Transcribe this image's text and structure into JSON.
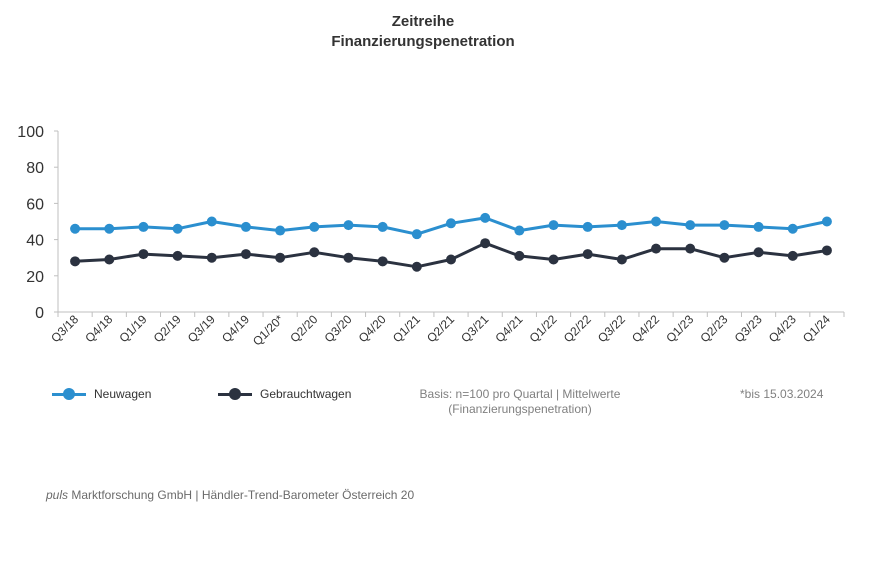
{
  "header": {
    "title_line1": "Zeitreihe",
    "title_line2": "Finanzierungspenetration"
  },
  "chart_data": {
    "type": "line",
    "title": "Zeitreihe Finanzierungspenetration",
    "xlabel": "",
    "ylabel": "",
    "ylim": [
      0,
      100
    ],
    "yticks": [
      0,
      20,
      40,
      60,
      80,
      100
    ],
    "grid": false,
    "legend_position": "bottom-left",
    "categories": [
      "Q3/18",
      "Q4/18",
      "Q1/19",
      "Q2/19",
      "Q3/19",
      "Q4/19",
      "Q1/20*",
      "Q2/20",
      "Q3/20",
      "Q4/20",
      "Q1/21",
      "Q2/21",
      "Q3/21",
      "Q4/21",
      "Q1/22",
      "Q2/22",
      "Q3/22",
      "Q4/22",
      "Q1/23",
      "Q2/23",
      "Q3/23",
      "Q4/23",
      "Q1/24"
    ],
    "series": [
      {
        "name": "Neuwagen",
        "color": "#2b8fcf",
        "values": [
          46,
          46,
          47,
          46,
          50,
          47,
          45,
          47,
          48,
          47,
          43,
          49,
          52,
          45,
          48,
          47,
          48,
          50,
          48,
          48,
          47,
          46,
          50
        ]
      },
      {
        "name": "Gebrauchtwagen",
        "color": "#2b3240",
        "values": [
          28,
          29,
          32,
          31,
          30,
          32,
          30,
          33,
          30,
          28,
          25,
          29,
          38,
          31,
          29,
          32,
          29,
          35,
          35,
          30,
          33,
          31,
          34
        ]
      }
    ]
  },
  "legend": {
    "neuwagen_label": "Neuwagen",
    "gebrauchtwagen_label": "Gebrauchtwagen"
  },
  "notes": {
    "basis_line1": "Basis: n=100 pro Quartal | Mittelwerte",
    "basis_line2": "(Finanzierungspenetration)",
    "footnote": "*bis 15.03.2024"
  },
  "source": {
    "brand": "puls",
    "text": " Marktforschung GmbH | Händler-Trend-Barometer Österreich 20"
  },
  "colors": {
    "axis": "#bfbfbf",
    "text": "#333333",
    "muted": "#808080"
  }
}
